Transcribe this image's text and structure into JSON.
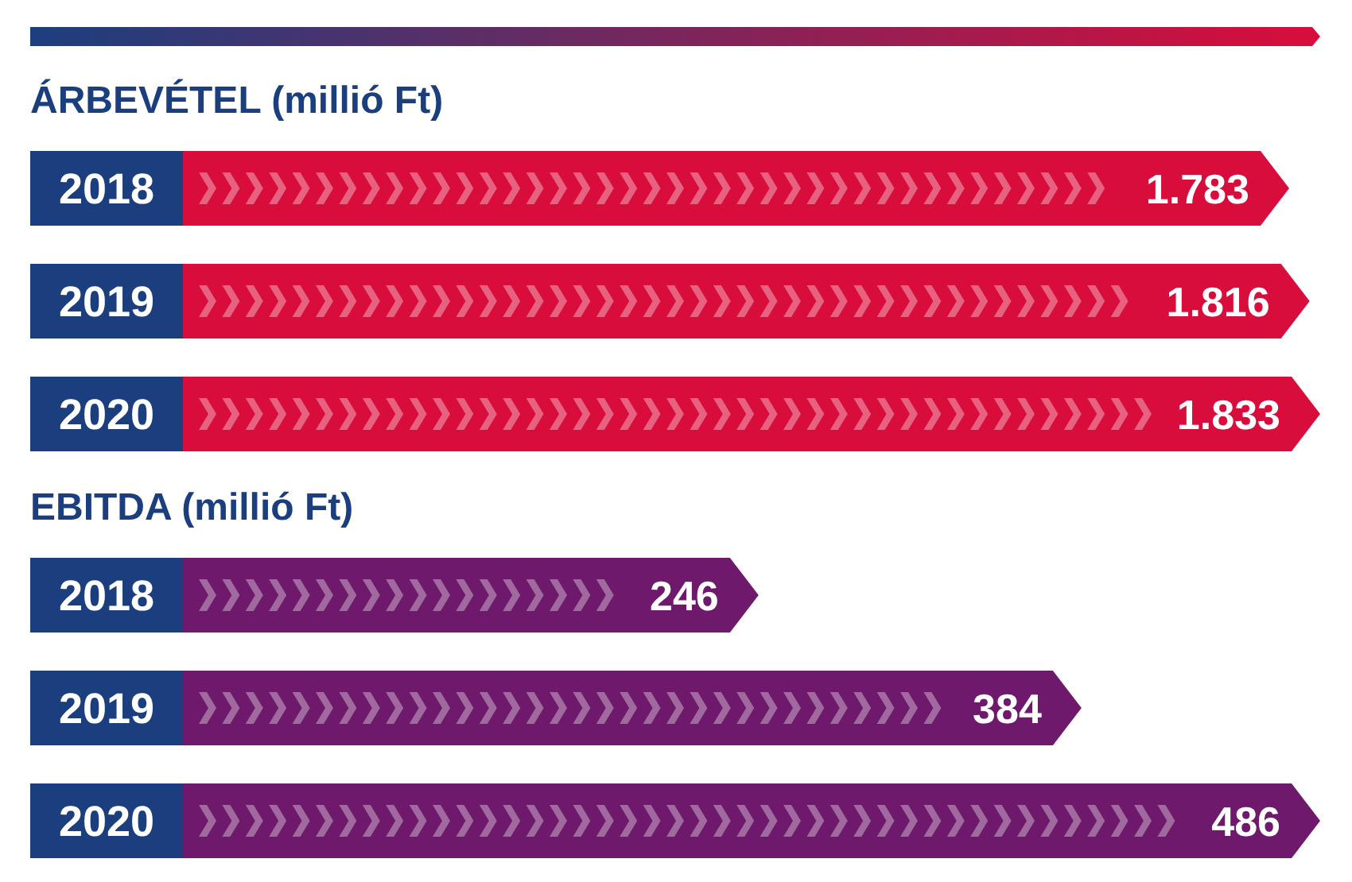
{
  "chart_data": [
    {
      "type": "bar",
      "orientation": "horizontal",
      "title": "ÁRBEVÉTEL (millió Ft)",
      "categories": [
        "2018",
        "2019",
        "2020"
      ],
      "values": [
        1783,
        1816,
        1833
      ],
      "color": "#d90d3b",
      "value_labels": [
        "1.783",
        "1.816",
        "1.833"
      ]
    },
    {
      "type": "bar",
      "orientation": "horizontal",
      "title": "EBITDA (millió Ft)",
      "categories": [
        "2018",
        "2019",
        "2020"
      ],
      "values": [
        246,
        384,
        486
      ],
      "color": "#6f196c",
      "data_labels": true
    }
  ]
}
